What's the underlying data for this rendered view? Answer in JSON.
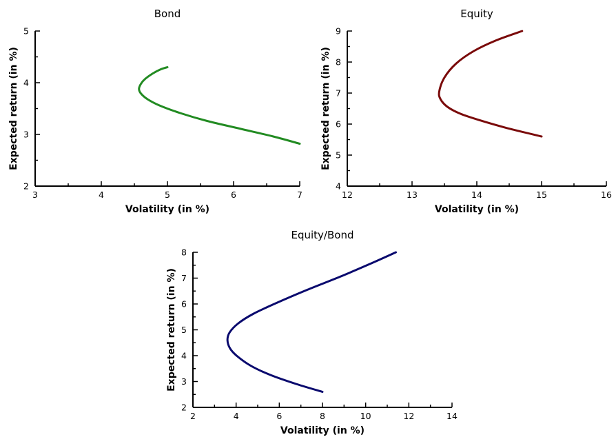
{
  "chart_data": [
    {
      "type": "line",
      "title": "Bond",
      "xlabel": "Volatility (in %)",
      "ylabel": "Expected return (in %)",
      "xlim": [
        3,
        7
      ],
      "ylim": [
        2,
        5
      ],
      "xticks": [
        "3",
        "4",
        "5",
        "6",
        "7"
      ],
      "yticks": [
        "2",
        "3",
        "4",
        "5"
      ],
      "grid": false,
      "color": "#228b22",
      "series": [
        {
          "x": [
            5.0,
            4.9,
            4.78,
            4.66,
            4.6,
            4.57,
            4.6,
            4.7,
            4.88,
            5.2,
            5.6,
            6.1,
            6.6,
            7.0
          ],
          "y": [
            4.3,
            4.26,
            4.18,
            4.07,
            3.98,
            3.88,
            3.79,
            3.68,
            3.56,
            3.41,
            3.26,
            3.11,
            2.96,
            2.82
          ]
        }
      ]
    },
    {
      "type": "line",
      "title": "Equity",
      "xlabel": "Volatility (in %)",
      "ylabel": "Expected return (in %)",
      "xlim": [
        12,
        16
      ],
      "ylim": [
        4,
        9
      ],
      "xticks": [
        "12",
        "13",
        "14",
        "15",
        "16"
      ],
      "yticks": [
        "4",
        "5",
        "6",
        "7",
        "8",
        "9"
      ],
      "grid": false,
      "color": "#7a0a0a",
      "series": [
        {
          "x": [
            14.7,
            14.3,
            13.95,
            13.68,
            13.5,
            13.42,
            13.44,
            13.55,
            13.75,
            14.05,
            14.45,
            15.0
          ],
          "y": [
            9.0,
            8.7,
            8.35,
            7.95,
            7.5,
            7.05,
            6.8,
            6.55,
            6.33,
            6.12,
            5.88,
            5.6
          ]
        }
      ]
    },
    {
      "type": "line",
      "title": "Equity/Bond",
      "xlabel": "Volatility (in %)",
      "ylabel": "Expected return (in %)",
      "xlim": [
        2,
        14
      ],
      "ylim": [
        2,
        8
      ],
      "xticks": [
        "2",
        "4",
        "6",
        "8",
        "10",
        "12",
        "14"
      ],
      "yticks": [
        "2",
        "3",
        "4",
        "5",
        "6",
        "7",
        "8"
      ],
      "grid": false,
      "color": "#0a0a6e",
      "series": [
        {
          "x": [
            11.4,
            10.2,
            8.8,
            7.3,
            5.9,
            4.8,
            4.1,
            3.7,
            3.6,
            3.72,
            4.05,
            4.7,
            5.6,
            6.8,
            8.0
          ],
          "y": [
            8.0,
            7.55,
            7.05,
            6.55,
            6.05,
            5.62,
            5.25,
            4.9,
            4.6,
            4.28,
            3.98,
            3.6,
            3.25,
            2.9,
            2.6
          ]
        }
      ]
    }
  ]
}
